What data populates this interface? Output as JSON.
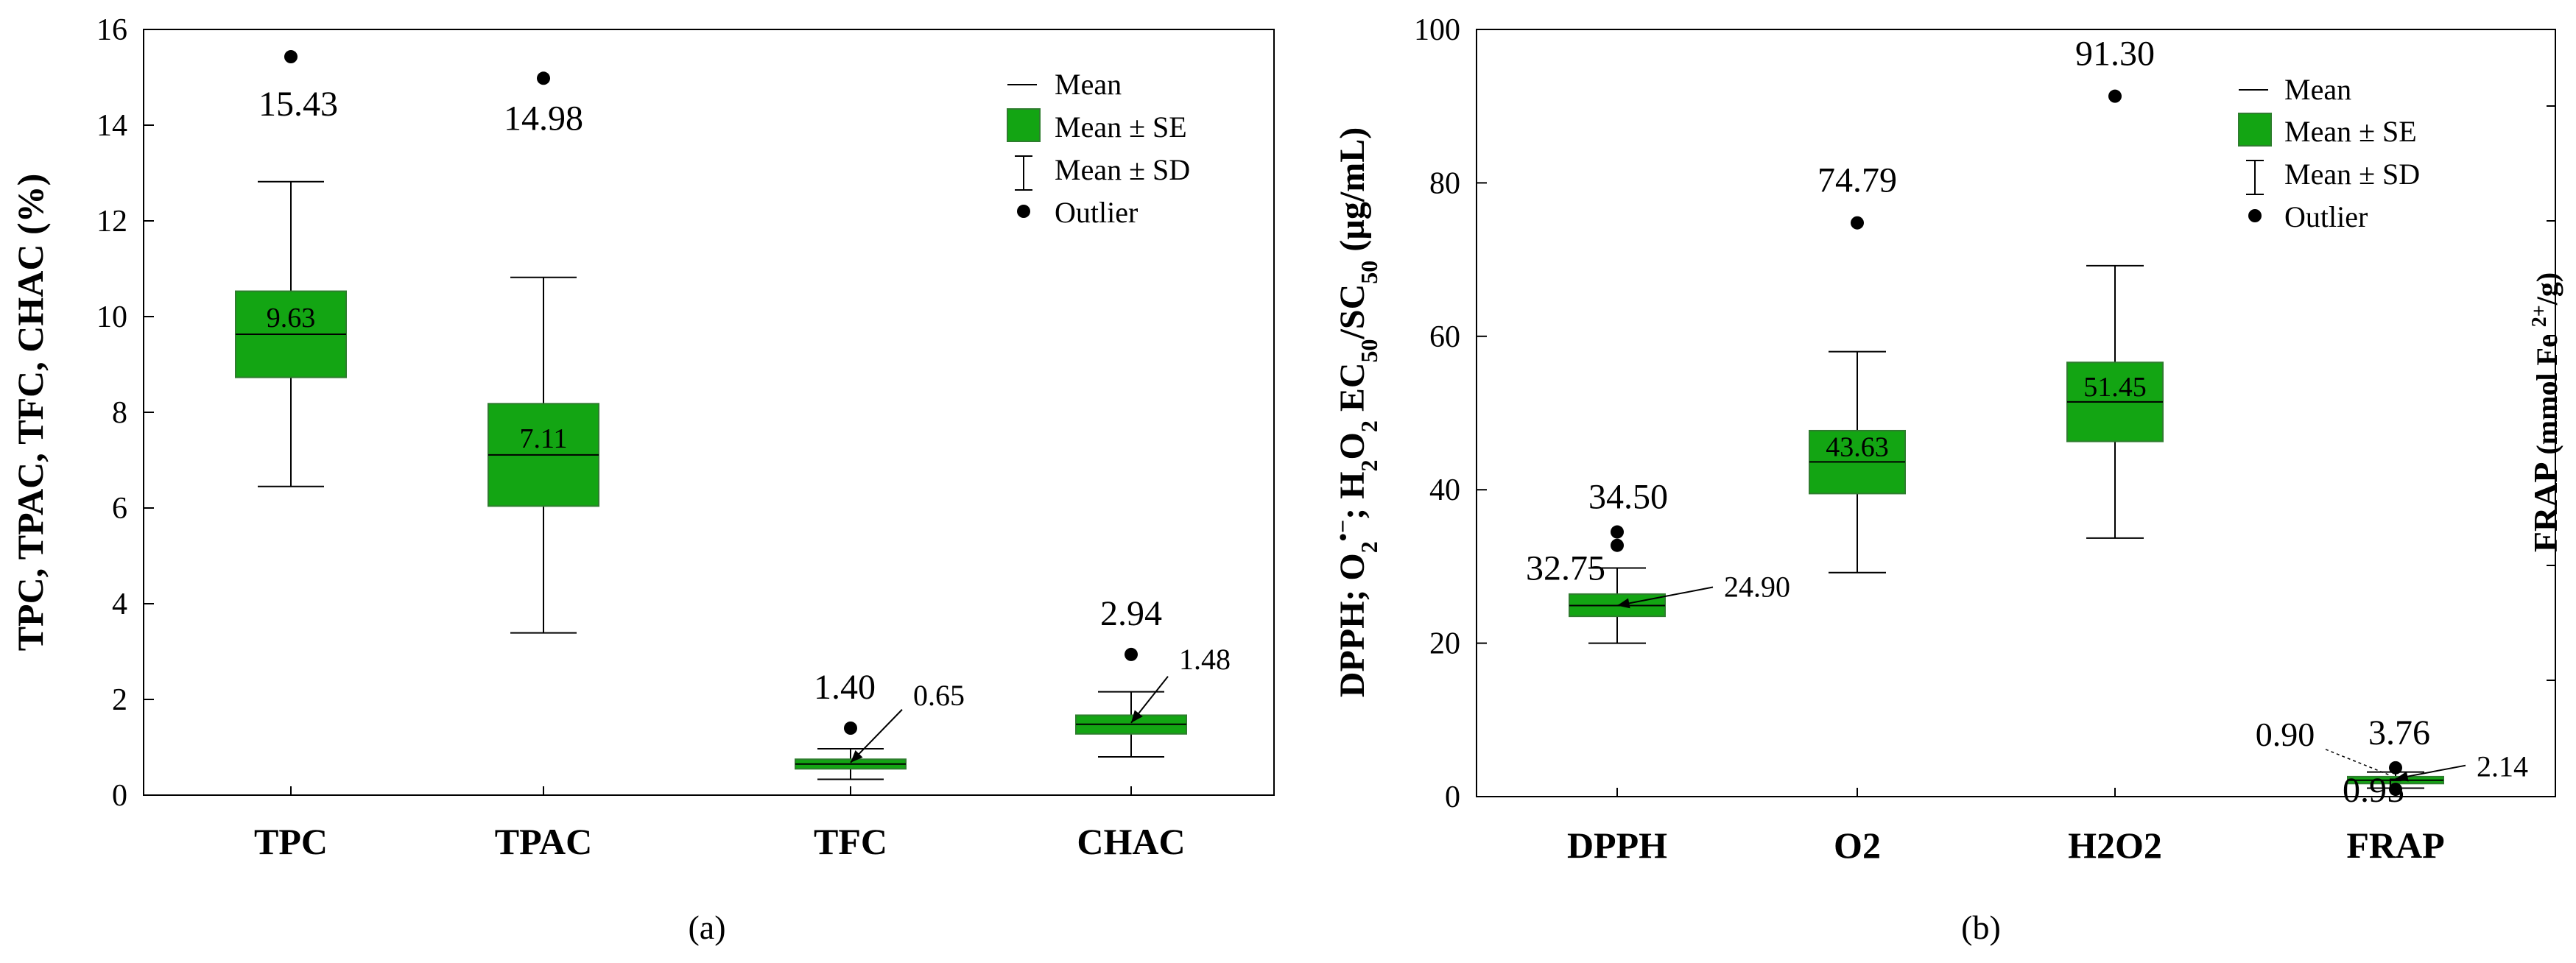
{
  "colors": {
    "box_fill": "#13a513",
    "box_stroke": "#2e7d2e",
    "line": "#000000",
    "background": "#ffffff"
  },
  "chart_data": [
    {
      "type": "box",
      "panel_label": "(a)",
      "ylabel": "TPC, TPAC, TFC, CHAC (%)",
      "ylim": [
        0,
        16
      ],
      "yticks": [
        0,
        2,
        4,
        6,
        8,
        10,
        12,
        14,
        16
      ],
      "categories": [
        "TPC",
        "TPAC",
        "TFC",
        "CHAC"
      ],
      "legend": {
        "position": "top-right",
        "mean": "Mean",
        "se": "Mean ± SE",
        "sd": "Mean ± SD",
        "outlier": "Outlier"
      },
      "series": [
        {
          "name": "TPC",
          "mean": 9.63,
          "se_low": 8.73,
          "se_high": 10.53,
          "sd_low": 6.45,
          "sd_high": 12.82,
          "outliers": [
            15.43
          ],
          "mean_label": "9.63",
          "outlier_labels": [
            "15.43"
          ]
        },
        {
          "name": "TPAC",
          "mean": 7.11,
          "se_low": 6.04,
          "se_high": 8.18,
          "sd_low": 3.39,
          "sd_high": 10.82,
          "outliers": [
            14.98
          ],
          "mean_label": "7.11",
          "outlier_labels": [
            "14.98"
          ]
        },
        {
          "name": "TFC",
          "mean": 0.65,
          "se_low": 0.55,
          "se_high": 0.75,
          "sd_low": 0.33,
          "sd_high": 0.97,
          "outliers": [
            1.4
          ],
          "mean_label": "0.65",
          "outlier_labels": [
            "1.40"
          ]
        },
        {
          "name": "CHAC",
          "mean": 1.48,
          "se_low": 1.28,
          "se_high": 1.67,
          "sd_low": 0.8,
          "sd_high": 2.16,
          "outliers": [
            2.94
          ],
          "mean_label": "1.48",
          "outlier_labels": [
            "2.94"
          ]
        }
      ]
    },
    {
      "type": "box",
      "panel_label": "(b)",
      "ylabel": "DPPH; O2•−; H2O2 EC50/SC50 (µg/mL)",
      "ylabel_parts": {
        "a": "DPPH; O",
        "b": "2",
        "c": "•−",
        "d": "; H",
        "e": "2",
        "f": "O",
        "g": "2",
        "h": " EC",
        "i": "50",
        "j": "/SC",
        "k": "50",
        "l": " (µg/mL)"
      },
      "ylabel_right": "FRAP (mmol Fe2+/g)",
      "ylabel_right_parts": {
        "a": "FRAP",
        "b": " (mmol Fe ",
        "c": "2+",
        "d": "/g)"
      },
      "ylim": [
        0,
        100
      ],
      "yticks": [
        0,
        20,
        40,
        60,
        80,
        100
      ],
      "categories": [
        "DPPH",
        "O2",
        "H2O2",
        "FRAP"
      ],
      "legend": {
        "position": "top-right",
        "mean": "Mean",
        "se": "Mean ± SE",
        "sd": "Mean ± SD",
        "outlier": "Outlier"
      },
      "series": [
        {
          "name": "DPPH",
          "mean": 24.9,
          "se_low": 23.5,
          "se_high": 26.4,
          "sd_low": 20.0,
          "sd_high": 29.8,
          "outliers": [
            32.75,
            34.5
          ],
          "mean_label": "24.90",
          "outlier_labels": [
            "32.75",
            "34.50"
          ]
        },
        {
          "name": "O2",
          "mean": 43.63,
          "se_low": 39.5,
          "se_high": 47.7,
          "sd_low": 29.2,
          "sd_high": 58.0,
          "outliers": [
            74.79
          ],
          "mean_label": "43.63",
          "outlier_labels": [
            "74.79"
          ]
        },
        {
          "name": "H2O2",
          "mean": 51.45,
          "se_low": 46.3,
          "se_high": 56.6,
          "sd_low": 33.7,
          "sd_high": 69.2,
          "outliers": [
            91.3
          ],
          "mean_label": "51.45",
          "outlier_labels": [
            "91.30"
          ]
        },
        {
          "name": "FRAP",
          "mean": 2.14,
          "se_low": 1.7,
          "se_high": 2.6,
          "sd_low": 1.1,
          "sd_high": 3.2,
          "outliers": [
            0.95,
            3.76
          ],
          "mean_label": "2.14",
          "outlier_labels": [
            "0.95",
            "3.76"
          ],
          "extra_label": "0.90"
        }
      ]
    }
  ]
}
